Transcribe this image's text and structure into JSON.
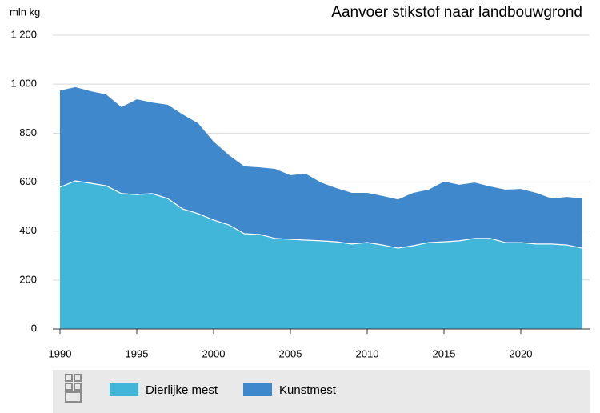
{
  "chart_data": {
    "type": "stacked-area",
    "title": "Aanvoer stikstof naar landbouwgrond",
    "y_label": "mln kg",
    "x": [
      1990,
      1991,
      1992,
      1993,
      1994,
      1995,
      1996,
      1997,
      1998,
      1999,
      2000,
      2001,
      2002,
      2003,
      2004,
      2005,
      2006,
      2007,
      2008,
      2009,
      2010,
      2011,
      2012,
      2013,
      2014,
      2015,
      2016,
      2017,
      2018,
      2019,
      2020,
      2021,
      2022,
      2023,
      2024
    ],
    "series": [
      {
        "name": "Dierlijke mest",
        "color": "#41b6d9",
        "values": [
          579,
          605,
          595,
          585,
          553,
          549,
          553,
          533,
          490,
          471,
          445,
          425,
          389,
          386,
          370,
          366,
          363,
          360,
          356,
          347,
          353,
          343,
          330,
          340,
          353,
          356,
          360,
          370,
          370,
          353,
          353,
          347,
          347,
          343,
          330
        ]
      },
      {
        "name": "Kunstmest",
        "color": "#4088cc",
        "values": [
          395,
          383,
          376,
          373,
          353,
          389,
          372,
          383,
          386,
          369,
          320,
          285,
          275,
          274,
          284,
          262,
          271,
          238,
          219,
          209,
          203,
          200,
          199,
          216,
          216,
          246,
          229,
          228,
          212,
          216,
          219,
          209,
          186,
          196,
          203
        ]
      }
    ],
    "xlim": [
      1990,
      2024.5
    ],
    "xticks": [
      1990,
      1995,
      2000,
      2005,
      2010,
      2015,
      2020
    ],
    "ylim": [
      0,
      1200
    ],
    "yticks": [
      0,
      200,
      400,
      600,
      800,
      {
        "value": 1000,
        "label": "1 000"
      },
      {
        "value": 1200,
        "label": "1 200"
      }
    ],
    "grid": true
  }
}
